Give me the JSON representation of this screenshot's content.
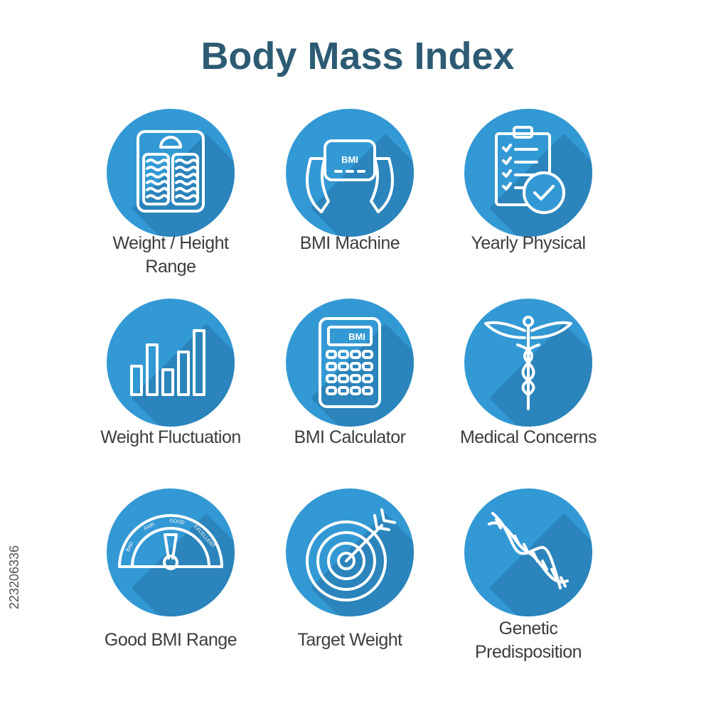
{
  "header": {
    "title": "Body Mass Index"
  },
  "items": [
    {
      "label_lines": [
        "Weight / Height",
        "Range"
      ]
    },
    {
      "label_lines": [
        "BMI Machine"
      ],
      "icon_text": "BMI"
    },
    {
      "label_lines": [
        "Yearly Physical"
      ]
    },
    {
      "label_lines": [
        "Weight Fluctuation"
      ]
    },
    {
      "label_lines": [
        "BMI Calculator"
      ],
      "icon_text": "BMI"
    },
    {
      "label_lines": [
        "Medical Concerns"
      ]
    },
    {
      "label_lines": [
        "Good BMI Range"
      ],
      "gauge_labels": [
        "BAD",
        "FAIR",
        "GOOD",
        "EXCELLENT"
      ]
    },
    {
      "label_lines": [
        "Target Weight"
      ]
    },
    {
      "label_lines": [
        "Genetic",
        "Predisposition"
      ]
    }
  ],
  "stock_id": "223206336"
}
